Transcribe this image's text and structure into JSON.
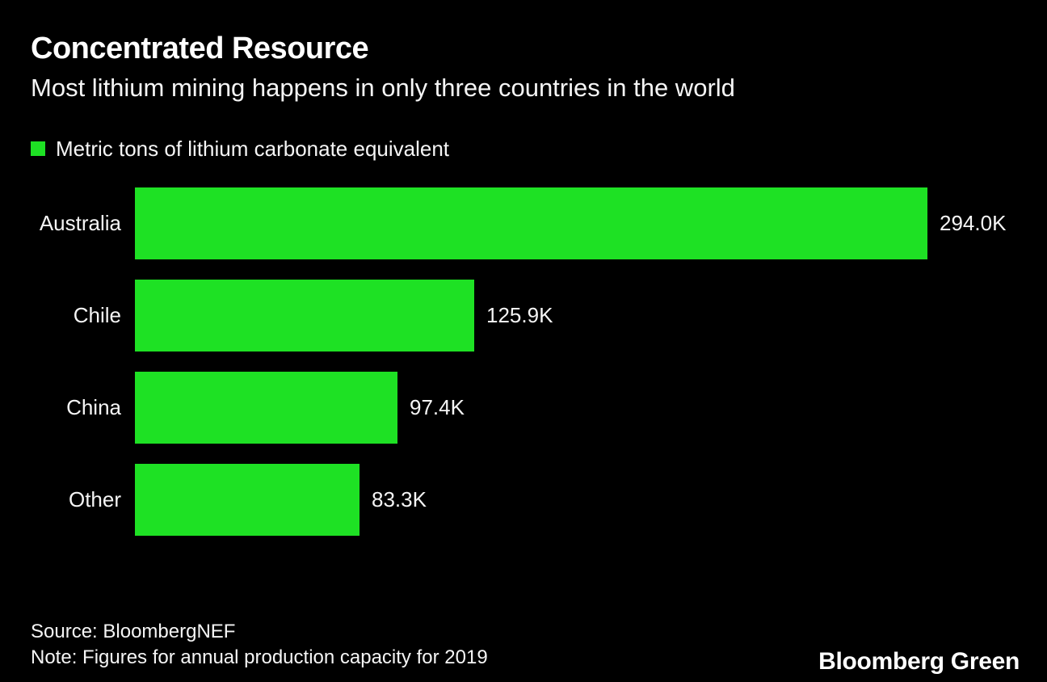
{
  "header": {
    "title": "Concentrated Resource",
    "subtitle": "Most lithium mining happens in only three countries in the world"
  },
  "chart_data": {
    "type": "bar",
    "orientation": "horizontal",
    "title": "Concentrated Resource",
    "subtitle": "Most lithium mining happens in only three countries in the world",
    "series_name": "Metric tons of lithium carbonate equivalent",
    "categories": [
      "Australia",
      "Chile",
      "China",
      "Other"
    ],
    "values": [
      294.0,
      125.9,
      97.4,
      83.3
    ],
    "value_labels": [
      "294.0K",
      "125.9K",
      "97.4K",
      "83.3K"
    ],
    "unit": "thousand metric tons of lithium carbonate equivalent",
    "xlim": [
      0,
      294.0
    ],
    "grid": false,
    "legend_position": "top-left",
    "bar_color": "#1ee124"
  },
  "colors": {
    "background": "#000000",
    "text": "#ffffff",
    "accent_green": "#1ee124"
  },
  "footer": {
    "source": "Source: BloombergNEF",
    "note": "Note: Figures for annual production capacity for 2019",
    "brand": "Bloomberg Green"
  }
}
